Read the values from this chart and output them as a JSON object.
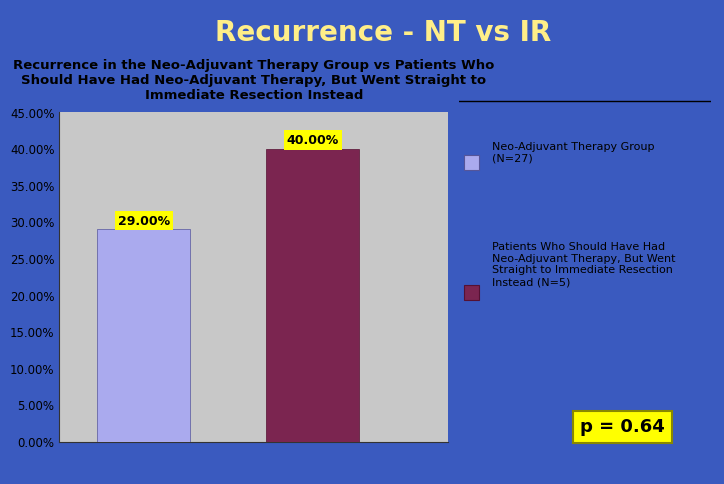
{
  "title": "Recurrence - NT vs IR",
  "chart_title": "Recurrence in the Neo-Adjuvant Therapy Group vs Patients Who\nShould Have Had Neo-Adjuvant Therapy, But Went Straight to\nImmediate Resection Instead",
  "values": [
    29.0,
    40.0
  ],
  "bar_colors": [
    "#aaaaee",
    "#7b2550"
  ],
  "bar_labels": [
    "29.00%",
    "40.00%"
  ],
  "ylim": [
    0,
    45
  ],
  "yticks": [
    0,
    5,
    10,
    15,
    20,
    25,
    30,
    35,
    40,
    45
  ],
  "ytick_labels": [
    "0.00%",
    "5.00%",
    "10.00%",
    "15.00%",
    "20.00%",
    "25.00%",
    "30.00%",
    "35.00%",
    "40.00%",
    "45.00%"
  ],
  "legend_label1": "Neo-Adjuvant Therapy Group\n(N=27)",
  "legend_label2": "Patients Who Should Have Had\nNeo-Adjuvant Therapy, But Went\nStraight to Immediate Resection\nInstead (N=5)",
  "legend_colors": [
    "#aaaaee",
    "#7b2550"
  ],
  "p_value_text": "p = 0.64",
  "background_outer": "#3a5abf",
  "background_chart": "#ffffff",
  "gray_plot_bg": "#c8c8c8",
  "title_bg_color": "#c84000",
  "title_text_color": "#ffee88",
  "bar_label_bg": "#ffff00",
  "p_value_bg": "#ffff00",
  "p_value_text_color": "#000000",
  "title_border_color": "#ffffff"
}
